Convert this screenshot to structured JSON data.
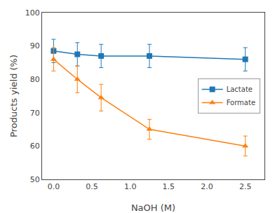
{
  "chart_data": {
    "type": "line",
    "xlabel": "NaOH (M)",
    "ylabel": "Products yield (%)",
    "x": [
      0.0,
      0.31,
      0.62,
      1.25,
      2.5
    ],
    "series": [
      {
        "name": "Lactate",
        "marker": "square",
        "line_style": "solid",
        "values": [
          88.5,
          87.5,
          87.0,
          87.0,
          86.0
        ],
        "yerr": [
          3.5,
          3.5,
          3.5,
          3.5,
          3.5
        ]
      },
      {
        "name": "Formate",
        "marker": "triangle",
        "line_style": "solid",
        "values": [
          86.0,
          80.0,
          74.5,
          65.0,
          60.0
        ],
        "yerr": [
          3.5,
          4.0,
          4.0,
          3.0,
          3.0
        ]
      }
    ],
    "xlim": [
      -0.15,
      2.75
    ],
    "ylim": [
      50,
      100
    ],
    "xticks": [
      {
        "value": 0.0,
        "label": "0.0"
      },
      0.5,
      {
        "value": 1.0,
        "label": "1.0"
      },
      1.5,
      {
        "value": 2.0,
        "label": "2.0"
      },
      2.5
    ],
    "yticks": [
      50,
      60,
      70,
      80,
      90,
      100
    ],
    "grid": false,
    "legend": "center right"
  }
}
